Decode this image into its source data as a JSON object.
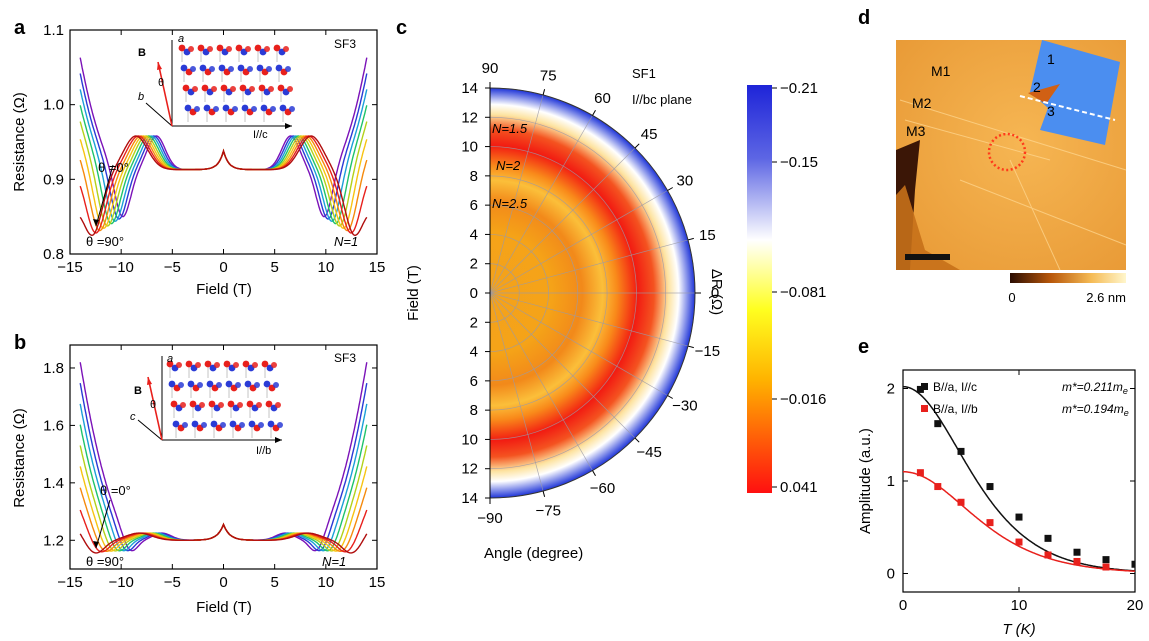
{
  "panels": {
    "a": {
      "label": "a",
      "sample": "SF3",
      "xlabel": "Field (T)",
      "ylabel": "Resistance (Ω)",
      "xticks": [
        "−15",
        "−10",
        "−5",
        "0",
        "5",
        "10",
        "15"
      ],
      "yticks": [
        "0.8",
        "0.9",
        "1.0",
        "1.1"
      ],
      "theta_start": "θ =0°",
      "theta_end": "θ =90°",
      "landau": "N=1",
      "inset": {
        "B": "B",
        "theta": "θ",
        "axis_a": "a",
        "axis_b": "b",
        "current": "I//c"
      }
    },
    "b": {
      "label": "b",
      "sample": "SF3",
      "xlabel": "Field (T)",
      "ylabel": "Resistance (Ω)",
      "xticks": [
        "−15",
        "−10",
        "−5",
        "0",
        "5",
        "10",
        "15"
      ],
      "yticks": [
        "1.2",
        "1.4",
        "1.6",
        "1.8"
      ],
      "theta_start": "θ =0°",
      "theta_end": "θ =90°",
      "landau": "N=1",
      "inset": {
        "B": "B",
        "theta": "θ",
        "axis_a": "a",
        "axis_c": "c",
        "current": "I//b"
      }
    },
    "c": {
      "label": "c",
      "sample": "SF1",
      "plane": "I//bc plane",
      "ylabel": "Field (T)",
      "xlabel": "Angle (degree)",
      "colorbar_label": "ΔR (Ω)",
      "field_ticks": [
        "14",
        "12",
        "10",
        "8",
        "6",
        "4",
        "2",
        "0",
        "2",
        "4",
        "6",
        "8",
        "10",
        "12",
        "14"
      ],
      "angle_ticks": [
        "90",
        "75",
        "60",
        "45",
        "30",
        "15",
        "0",
        "−15",
        "−30",
        "−45",
        "−60",
        "−75",
        "−90"
      ],
      "colorbar_ticks": [
        "−0.21",
        "−0.15",
        "−0.081",
        "−0.016",
        "0.041"
      ],
      "landau_labels": [
        "N=1.5",
        "N=2",
        "N=2.5"
      ]
    },
    "d": {
      "label": "d",
      "regions": [
        "M1",
        "M2",
        "M3"
      ],
      "flakes": [
        "1",
        "2",
        "3"
      ],
      "scale_min": "0",
      "scale_max": "2.6 nm"
    },
    "e": {
      "label": "e",
      "xlabel": "T (K)",
      "ylabel": "Amplitude (a.u.)",
      "xticks": [
        "0",
        "10",
        "20"
      ],
      "yticks": [
        "0",
        "1",
        "2"
      ],
      "legend": [
        {
          "text": "B//a, I//c",
          "mass": "m*=0.211m",
          "sub": "e",
          "color": "#111111"
        },
        {
          "text": "B//a, I//b",
          "mass": "m*=0.194m",
          "sub": "e",
          "color": "#e8201c"
        }
      ]
    }
  },
  "chart_data": [
    {
      "type": "scatter",
      "panel": "e",
      "xlabel": "T (K)",
      "ylabel": "Amplitude (a.u.)",
      "xlim": [
        0,
        20
      ],
      "ylim": [
        -0.2,
        2.2
      ],
      "series": [
        {
          "name": "B//a, I//c",
          "x": [
            1.5,
            3,
            5,
            7.5,
            10,
            12.5,
            15,
            17.5,
            20
          ],
          "values": [
            1.99,
            1.62,
            1.32,
            0.94,
            0.61,
            0.38,
            0.23,
            0.15,
            0.1
          ],
          "fit_m": 0.211,
          "fit_A": 2.02,
          "color": "#111111"
        },
        {
          "name": "B//a, I//b",
          "x": [
            1.5,
            3,
            5,
            7.5,
            10,
            12.5,
            15,
            17.5
          ],
          "values": [
            1.09,
            0.94,
            0.77,
            0.55,
            0.34,
            0.2,
            0.13,
            0.07
          ],
          "fit_m": 0.194,
          "fit_A": 1.1,
          "color": "#e8201c"
        }
      ]
    }
  ]
}
